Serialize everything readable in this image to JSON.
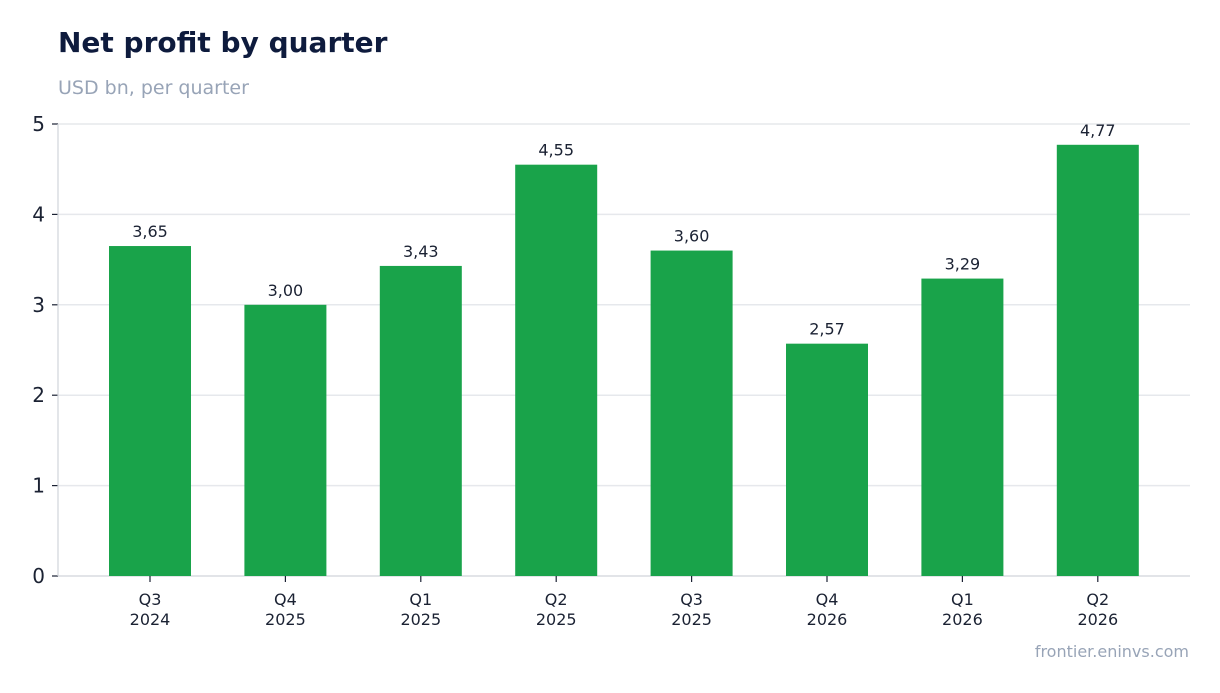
{
  "header": {
    "title": "Net profit by quarter",
    "subtitle": "USD bn, per quarter"
  },
  "footer": {
    "source": "frontier.eninvs.com"
  },
  "colors": {
    "bar": "#19a34a",
    "grid": "#e6e8ec",
    "axis": "#d0d4da",
    "text": "#1b2233"
  },
  "chart_data": {
    "type": "bar",
    "title": "Net profit by quarter",
    "subtitle": "USD bn, per quarter",
    "categories": [
      [
        "Q3",
        "2024"
      ],
      [
        "Q4",
        "2025"
      ],
      [
        "Q1",
        "2025"
      ],
      [
        "Q2",
        "2025"
      ],
      [
        "Q3",
        "2025"
      ],
      [
        "Q4",
        "2026"
      ],
      [
        "Q1",
        "2026"
      ],
      [
        "Q2",
        "2026"
      ]
    ],
    "values": [
      3.65,
      3.0,
      3.43,
      4.55,
      3.6,
      2.57,
      3.29,
      4.77
    ],
    "data_labels": [
      "3,65",
      "3,00",
      "3,43",
      "4,55",
      "3,60",
      "2,57",
      "3,29",
      "4,77"
    ],
    "ylim": [
      0,
      5
    ],
    "yticks": [
      0,
      1,
      2,
      3,
      4,
      5
    ],
    "grid": true,
    "legend": "none"
  }
}
